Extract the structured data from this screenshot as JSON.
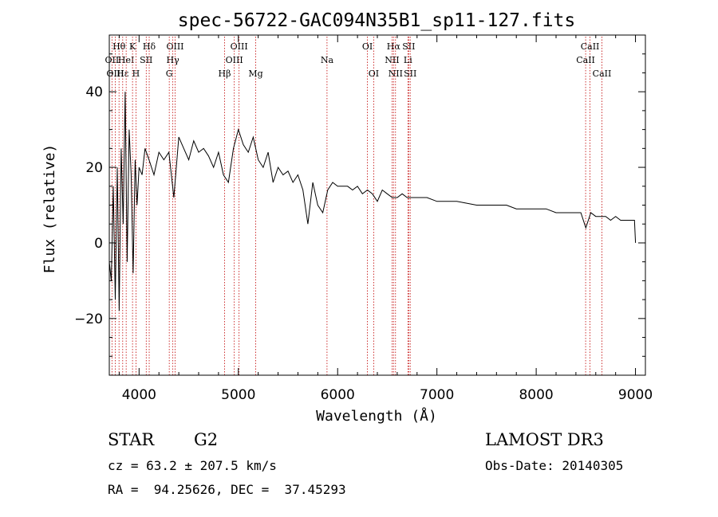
{
  "chart_data": {
    "type": "line",
    "title": "spec-56722-GAC094N35B1_sp11-127.fits",
    "xlabel": "Wavelength (Å)",
    "ylabel": "Flux (relative)",
    "xlim": [
      3700,
      9100
    ],
    "ylim": [
      -35,
      55
    ],
    "x_ticks": [
      4000,
      5000,
      6000,
      7000,
      8000,
      9000
    ],
    "y_ticks": [
      -20,
      0,
      20,
      40
    ],
    "x_tick_labels": [
      "4000",
      "5000",
      "6000",
      "7000",
      "8000",
      "9000"
    ],
    "y_tick_labels": [
      "−20",
      "0",
      "20",
      "40"
    ],
    "grid": false,
    "series": [
      {
        "name": "flux",
        "color": "#000000",
        "x": [
          3700,
          3720,
          3740,
          3760,
          3780,
          3800,
          3820,
          3840,
          3860,
          3880,
          3900,
          3920,
          3940,
          3960,
          3980,
          4000,
          4030,
          4060,
          4100,
          4150,
          4200,
          4250,
          4300,
          4350,
          4400,
          4450,
          4500,
          4550,
          4600,
          4650,
          4700,
          4750,
          4800,
          4850,
          4900,
          4950,
          5000,
          5050,
          5100,
          5150,
          5200,
          5250,
          5300,
          5350,
          5400,
          5450,
          5500,
          5550,
          5600,
          5650,
          5700,
          5750,
          5800,
          5850,
          5900,
          5950,
          6000,
          6050,
          6100,
          6150,
          6200,
          6250,
          6300,
          6350,
          6400,
          6450,
          6500,
          6550,
          6600,
          6650,
          6700,
          6750,
          6800,
          6900,
          7000,
          7100,
          7200,
          7300,
          7400,
          7500,
          7600,
          7700,
          7800,
          7900,
          8000,
          8100,
          8200,
          8300,
          8400,
          8450,
          8500,
          8550,
          8600,
          8650,
          8700,
          8750,
          8800,
          8850,
          8900,
          8950,
          8990,
          9000
        ],
        "values": [
          -5,
          -10,
          15,
          -15,
          20,
          -18,
          25,
          5,
          40,
          -5,
          30,
          18,
          -8,
          22,
          10,
          20,
          18,
          25,
          22,
          18,
          24,
          22,
          24,
          12,
          28,
          25,
          22,
          27,
          24,
          25,
          23,
          20,
          24,
          18,
          16,
          25,
          30,
          26,
          24,
          28,
          22,
          20,
          24,
          16,
          20,
          18,
          19,
          16,
          18,
          14,
          5,
          16,
          10,
          8,
          14,
          16,
          15,
          15,
          15,
          14,
          15,
          13,
          14,
          13,
          11,
          14,
          13,
          12,
          12,
          13,
          12,
          12,
          12,
          12,
          11,
          11,
          11,
          10.5,
          10,
          10,
          10,
          10,
          9,
          9,
          9,
          9,
          8,
          8,
          8,
          8,
          4,
          8,
          7,
          7,
          7,
          6,
          7,
          6,
          6,
          6,
          6,
          0
        ]
      }
    ],
    "lines": [
      {
        "name": "Hθ",
        "x": 3798,
        "row": 1
      },
      {
        "name": "OII",
        "x": 3727,
        "row": 2
      },
      {
        "name": "OIII",
        "x": 3760,
        "row": 3
      },
      {
        "name": "Hε",
        "x": 3835,
        "row": 3
      },
      {
        "name": "HeI",
        "x": 3870,
        "row": 2
      },
      {
        "name": "K",
        "x": 3934,
        "row": 1
      },
      {
        "name": "H",
        "x": 3969,
        "row": 3
      },
      {
        "name": "SII",
        "x": 4072,
        "row": 2
      },
      {
        "name": "Hδ",
        "x": 4102,
        "row": 1
      },
      {
        "name": "OIII",
        "x": 4363,
        "row": 1
      },
      {
        "name": "Hγ",
        "x": 4340,
        "row": 2
      },
      {
        "name": "G",
        "x": 4304,
        "row": 3
      },
      {
        "name": "Hβ",
        "x": 4861,
        "row": 3
      },
      {
        "name": "OIII",
        "x": 5007,
        "row": 1
      },
      {
        "name": "OIII",
        "x": 4959,
        "row": 2
      },
      {
        "name": "Mg",
        "x": 5175,
        "row": 3
      },
      {
        "name": "Na",
        "x": 5893,
        "row": 2
      },
      {
        "name": "OI",
        "x": 6300,
        "row": 1
      },
      {
        "name": "OI",
        "x": 6363,
        "row": 3
      },
      {
        "name": "Hα",
        "x": 6563,
        "row": 1
      },
      {
        "name": "NII",
        "x": 6548,
        "row": 2
      },
      {
        "name": "NII",
        "x": 6583,
        "row": 3
      },
      {
        "name": "SII",
        "x": 6716,
        "row": 1
      },
      {
        "name": "Li",
        "x": 6708,
        "row": 2
      },
      {
        "name": "SII",
        "x": 6731,
        "row": 3
      },
      {
        "name": "CaII",
        "x": 8542,
        "row": 1
      },
      {
        "name": "CaII",
        "x": 8498,
        "row": 2
      },
      {
        "name": "CaII",
        "x": 8662,
        "row": 3
      }
    ]
  },
  "info": {
    "class": "STAR",
    "subclass": "G2",
    "survey": "LAMOST DR3",
    "redshift": "cz = 63.2 ± 207.5 km/s",
    "obs_date": "Obs-Date: 20140305",
    "coords": "RA =  94.25626, DEC =  37.45293"
  }
}
